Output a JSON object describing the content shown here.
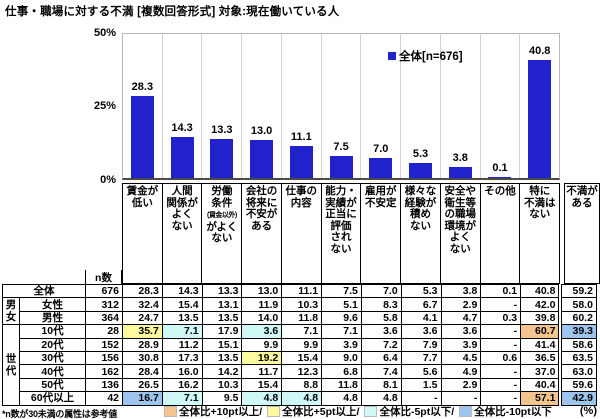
{
  "title": "仕事・職場に対する不満 [複数回答形式] 対象:現在働いている人",
  "chart": {
    "legend": "全体[n=676]",
    "yticks": [
      "50%",
      "25%",
      "0%"
    ],
    "bar_color": "#2222CC"
  },
  "chart_data": {
    "type": "bar",
    "title": "仕事・職場に対する不満 [複数回答形式] 対象:現在働いている人",
    "series_name": "全体[n=676]",
    "categories": [
      "賃金が低い",
      "人間関係がよくない",
      "労働条件(賃金以外)がよくない",
      "会社の将来に不安がある",
      "仕事の内容",
      "能力・実績が正当に評価されない",
      "雇用が不安定",
      "様々な経験が積めない",
      "安全や衛生等の職場環境がよくない",
      "その他",
      "特に不満はない"
    ],
    "values": [
      28.3,
      14.3,
      13.3,
      13.0,
      11.1,
      7.5,
      7.0,
      5.3,
      3.8,
      0.1,
      40.8
    ],
    "ylim": [
      0,
      50
    ],
    "ytick_values": [
      0,
      25,
      50
    ],
    "grid": "vertical-only",
    "legend_position": "top-inside"
  },
  "category_labels": [
    [
      "賃金が",
      "低い"
    ],
    [
      "人間",
      "関係が",
      "よく",
      "ない"
    ],
    [
      "労働",
      "条件",
      "(賃金以外)",
      "がよく",
      "ない"
    ],
    [
      "会社の",
      "将来に",
      "不安が",
      "ある"
    ],
    [
      "仕事の",
      "内容"
    ],
    [
      "能力・",
      "実績が",
      "正当に",
      "評価",
      "され",
      "ない"
    ],
    [
      "雇用が",
      "不安定"
    ],
    [
      "様々な",
      "経験が",
      "積め",
      "ない"
    ],
    [
      "安全や",
      "衛生等",
      "の職場",
      "環境が",
      "よく",
      "ない"
    ],
    [
      "その他"
    ],
    [
      "特に",
      "不満は",
      "ない"
    ]
  ],
  "extra_label": [
    "不満が",
    "ある"
  ],
  "highlight_colors": {
    "plus10": "#F3C48E",
    "plus5": "#FBFB9E",
    "minus5": "#CFF8F6",
    "minus10": "#9CC4EC"
  },
  "table": {
    "n_header": "n数",
    "groups": [
      {
        "chars": [
          "男",
          "女"
        ],
        "start": 1,
        "span": 2
      },
      {
        "chars": [
          "世",
          "代"
        ],
        "start": 3,
        "span": 6
      }
    ],
    "rows": [
      {
        "label": "全体",
        "n": "676",
        "values": [
          "28.3",
          "14.3",
          "13.3",
          "13.0",
          "11.1",
          "7.5",
          "7.0",
          "5.3",
          "3.8",
          "0.1",
          "40.8",
          "59.2"
        ],
        "highlights": {}
      },
      {
        "label": "女性",
        "n": "312",
        "values": [
          "32.4",
          "15.4",
          "13.1",
          "11.9",
          "10.3",
          "5.1",
          "8.3",
          "6.7",
          "2.9",
          "-",
          "42.0",
          "58.0"
        ],
        "highlights": {}
      },
      {
        "label": "男性",
        "n": "364",
        "values": [
          "24.7",
          "13.5",
          "13.5",
          "14.0",
          "11.8",
          "9.6",
          "5.8",
          "4.1",
          "4.7",
          "0.3",
          "39.8",
          "60.2"
        ],
        "highlights": {}
      },
      {
        "label": "10代",
        "n": "28",
        "values": [
          "35.7",
          "7.1",
          "17.9",
          "3.6",
          "7.1",
          "7.1",
          "3.6",
          "3.6",
          "3.6",
          "-",
          "60.7",
          "39.3"
        ],
        "highlights": {
          "0": "plus5",
          "1": "minus5",
          "3": "minus5",
          "10": "plus10",
          "11": "minus10"
        }
      },
      {
        "label": "20代",
        "n": "152",
        "values": [
          "28.9",
          "11.2",
          "15.1",
          "9.9",
          "9.9",
          "3.9",
          "7.2",
          "7.9",
          "3.9",
          "-",
          "41.4",
          "58.6"
        ],
        "highlights": {}
      },
      {
        "label": "30代",
        "n": "156",
        "values": [
          "30.8",
          "17.3",
          "13.5",
          "19.2",
          "15.4",
          "9.0",
          "6.4",
          "7.7",
          "4.5",
          "0.6",
          "36.5",
          "63.5"
        ],
        "highlights": {
          "3": "plus5"
        }
      },
      {
        "label": "40代",
        "n": "162",
        "values": [
          "28.4",
          "16.0",
          "14.2",
          "11.7",
          "12.3",
          "6.8",
          "7.4",
          "5.6",
          "4.9",
          "-",
          "37.0",
          "63.0"
        ],
        "highlights": {}
      },
      {
        "label": "50代",
        "n": "136",
        "values": [
          "26.5",
          "16.2",
          "10.3",
          "15.4",
          "8.8",
          "11.8",
          "8.1",
          "1.5",
          "2.9",
          "-",
          "40.4",
          "59.6"
        ],
        "highlights": {}
      },
      {
        "label": "60代以上",
        "n": "42",
        "values": [
          "16.7",
          "7.1",
          "9.5",
          "4.8",
          "4.8",
          "4.8",
          "4.8",
          "-",
          "-",
          "-",
          "57.1",
          "42.9"
        ],
        "highlights": {
          "0": "minus10",
          "1": "minus5",
          "3": "minus5",
          "4": "minus5",
          "10": "plus10",
          "11": "minus10"
        }
      }
    ]
  },
  "footer": {
    "note": "*n数が30未満の属性は参考値",
    "legend": [
      {
        "label": "全体比+10pt以上/",
        "key": "plus10",
        "color": "#F3C48E"
      },
      {
        "label": "全体比+5pt以上/",
        "key": "plus5",
        "color": "#FBFB9E"
      },
      {
        "label": "全体比-5pt以下/",
        "key": "minus5",
        "color": "#CFF8F6"
      },
      {
        "label": "全体比-10pt以下",
        "key": "minus10",
        "color": "#9CC4EC"
      }
    ],
    "unit": "(%)"
  }
}
